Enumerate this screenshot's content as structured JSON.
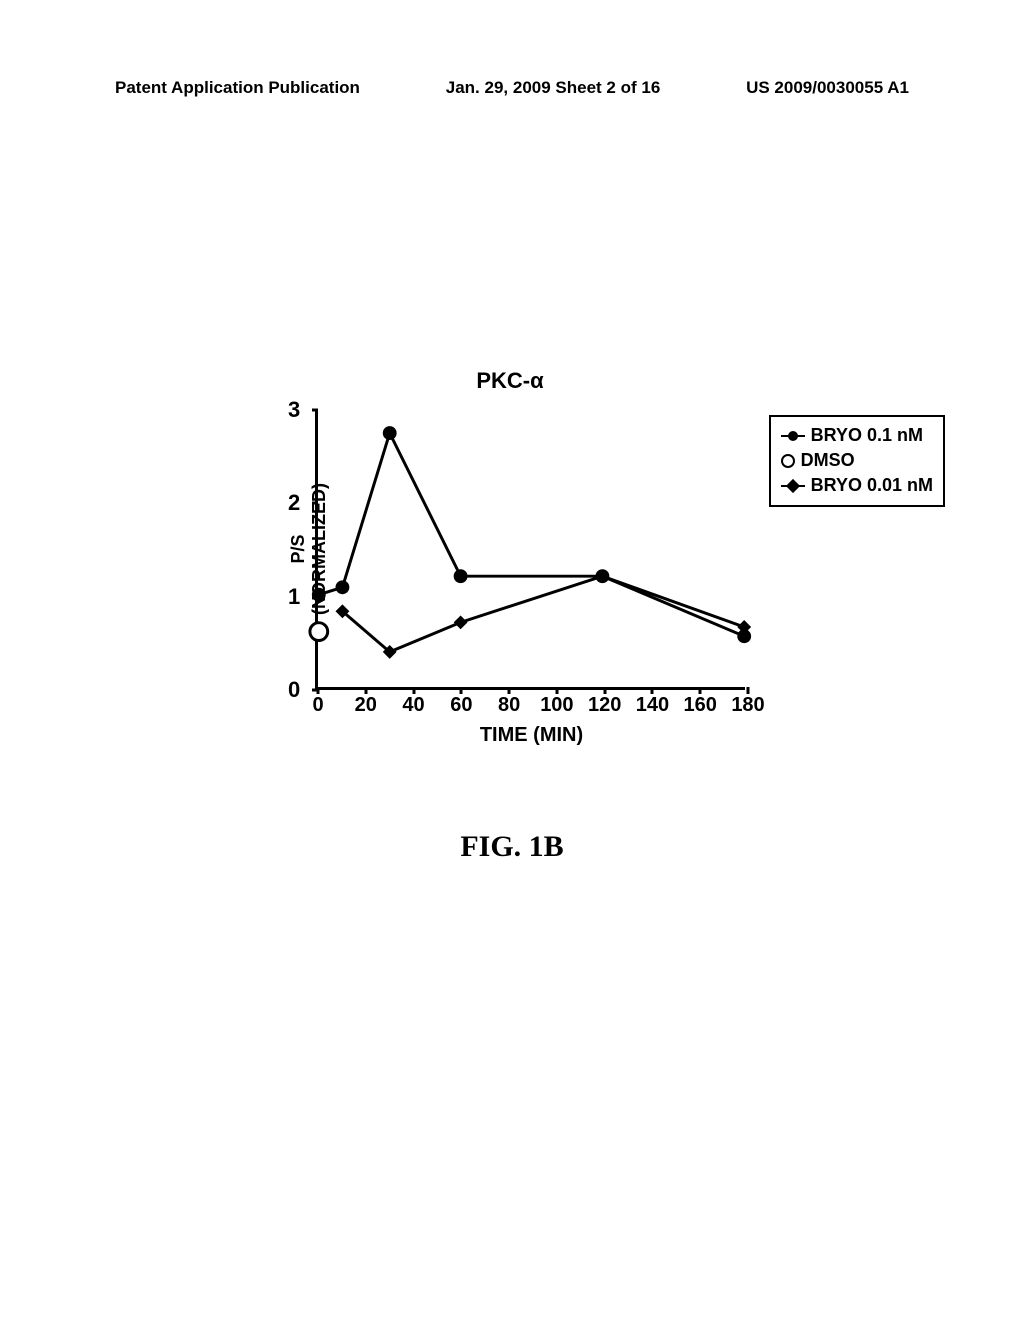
{
  "header": {
    "left": "Patent Application Publication",
    "mid": "Jan. 29, 2009  Sheet 2 of 16",
    "right": "US 2009/0030055 A1"
  },
  "figure_caption": "FIG. 1B",
  "chart": {
    "type": "line",
    "title": "PKC-α",
    "xlabel": "TIME (MIN)",
    "ylabel_line1": "P/S",
    "ylabel_line2": "(NORMALIZED)",
    "xlim": [
      0,
      180
    ],
    "ylim": [
      0,
      3
    ],
    "xticks": [
      0,
      20,
      40,
      60,
      80,
      100,
      120,
      140,
      160,
      180
    ],
    "yticks": [
      0,
      1,
      2,
      3
    ],
    "line_color": "#000000",
    "line_width": 3,
    "marker_size": 7,
    "background_color": "#ffffff",
    "series": [
      {
        "name": "BRYO 0.1 nM",
        "marker": "circle-fill",
        "x": [
          0,
          10,
          30,
          60,
          120,
          180
        ],
        "y": [
          1.0,
          1.08,
          2.75,
          1.2,
          1.2,
          0.55
        ]
      },
      {
        "name": "DMSO",
        "marker": "circle-open",
        "x": [
          0
        ],
        "y": [
          0.6
        ]
      },
      {
        "name": "BRYO 0.01 nM",
        "marker": "diamond",
        "x": [
          10,
          30,
          60,
          120,
          180
        ],
        "y": [
          0.82,
          0.38,
          0.7,
          1.2,
          0.65
        ]
      }
    ],
    "legend": {
      "items": [
        {
          "label": "BRYO 0.1 nM",
          "marker": "circle-fill",
          "has_line": true
        },
        {
          "label": "DMSO",
          "marker": "circle-open",
          "has_line": false
        },
        {
          "label": "BRYO 0.01 nM",
          "marker": "diamond",
          "has_line": true
        }
      ]
    }
  }
}
